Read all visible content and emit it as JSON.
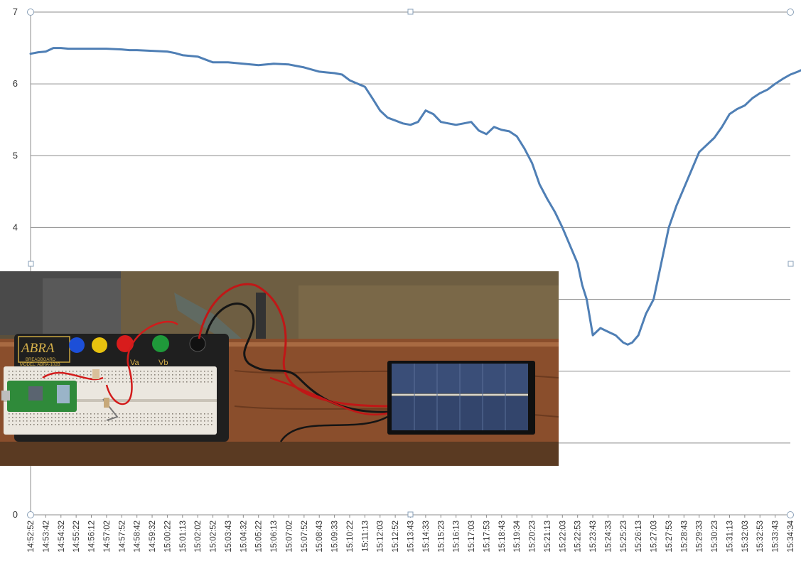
{
  "chart_data": {
    "type": "line",
    "title": "",
    "xlabel": "",
    "ylabel": "",
    "ylim": [
      0,
      7
    ],
    "yticks": [
      0,
      4,
      5,
      6,
      7
    ],
    "grid": true,
    "legend": "none",
    "line_color": "#4f7fb5",
    "grid_color": "#8c8c8c",
    "x_tick_labels": [
      "14:52:52",
      "14:53:42",
      "14:54:32",
      "14:55:22",
      "14:56:12",
      "14:57:02",
      "14:57:52",
      "14:58:42",
      "14:59:32",
      "15:00:22",
      "15:01:13",
      "15:02:02",
      "15:02:52",
      "15:03:43",
      "15:04:32",
      "15:05:22",
      "15:06:13",
      "15:07:02",
      "15:07:52",
      "15:08:43",
      "15:09:33",
      "15:10:22",
      "15:11:13",
      "15:12:03",
      "15:12:52",
      "15:13:43",
      "15:14:33",
      "15:15:23",
      "15:16:13",
      "15:17:03",
      "15:17:53",
      "15:18:43",
      "15:19:34",
      "15:20:23",
      "15:21:13",
      "15:22:03",
      "15:22:53",
      "15:23:43",
      "15:24:33",
      "15:25:23",
      "15:26:13",
      "15:27:03",
      "15:27:53",
      "15:28:43",
      "15:29:33",
      "15:30:23",
      "15:31:13",
      "15:32:03",
      "15:32:53",
      "15:33:43",
      "15:34:34"
    ],
    "series": [
      {
        "values": [
          [
            0,
            6.42
          ],
          [
            0.5,
            6.44
          ],
          [
            1,
            6.45
          ],
          [
            1.5,
            6.5
          ],
          [
            2,
            6.5
          ],
          [
            2.5,
            6.49
          ],
          [
            3,
            6.49
          ],
          [
            4,
            6.49
          ],
          [
            5,
            6.49
          ],
          [
            6,
            6.48
          ],
          [
            6.5,
            6.47
          ],
          [
            7,
            6.47
          ],
          [
            8,
            6.46
          ],
          [
            9,
            6.45
          ],
          [
            9.5,
            6.43
          ],
          [
            10,
            6.4
          ],
          [
            11,
            6.38
          ],
          [
            11.5,
            6.34
          ],
          [
            12,
            6.3
          ],
          [
            13,
            6.3
          ],
          [
            14,
            6.28
          ],
          [
            14.5,
            6.27
          ],
          [
            15,
            6.26
          ],
          [
            15.5,
            6.27
          ],
          [
            16,
            6.28
          ],
          [
            17,
            6.27
          ],
          [
            17.5,
            6.25
          ],
          [
            18,
            6.23
          ],
          [
            18.5,
            6.2
          ],
          [
            19,
            6.17
          ],
          [
            19.5,
            6.16
          ],
          [
            20,
            6.15
          ],
          [
            20.5,
            6.13
          ],
          [
            21,
            6.05
          ],
          [
            22,
            5.96
          ],
          [
            22.5,
            5.8
          ],
          [
            23,
            5.63
          ],
          [
            23.5,
            5.53
          ],
          [
            24,
            5.49
          ],
          [
            24.5,
            5.45
          ],
          [
            25,
            5.43
          ],
          [
            25.5,
            5.47
          ],
          [
            26,
            5.63
          ],
          [
            26.5,
            5.58
          ],
          [
            27,
            5.47
          ],
          [
            27.5,
            5.45
          ],
          [
            28,
            5.43
          ],
          [
            28.5,
            5.45
          ],
          [
            29,
            5.47
          ],
          [
            29.5,
            5.35
          ],
          [
            30,
            5.3
          ],
          [
            30.5,
            5.4
          ],
          [
            31,
            5.36
          ],
          [
            31.5,
            5.34
          ],
          [
            32,
            5.27
          ],
          [
            32.5,
            5.1
          ],
          [
            33,
            4.9
          ],
          [
            33.5,
            4.6
          ],
          [
            34,
            4.4
          ],
          [
            34.5,
            4.22
          ],
          [
            35,
            4.0
          ],
          [
            35.5,
            3.75
          ],
          [
            36,
            3.5
          ],
          [
            36.3,
            3.2
          ],
          [
            36.6,
            3.0
          ],
          [
            37,
            2.5
          ],
          [
            37.5,
            2.6
          ],
          [
            38,
            2.55
          ],
          [
            38.5,
            2.5
          ],
          [
            39,
            2.4
          ],
          [
            39.3,
            2.37
          ],
          [
            39.6,
            2.4
          ],
          [
            40,
            2.5
          ],
          [
            40.5,
            2.8
          ],
          [
            41,
            3.0
          ],
          [
            41.5,
            3.5
          ],
          [
            42,
            4.0
          ],
          [
            42.5,
            4.3
          ],
          [
            43,
            4.55
          ],
          [
            43.5,
            4.8
          ],
          [
            44,
            5.05
          ],
          [
            44.5,
            5.15
          ],
          [
            45,
            5.25
          ],
          [
            45.5,
            5.4
          ],
          [
            46,
            5.58
          ],
          [
            46.5,
            5.65
          ],
          [
            47,
            5.7
          ],
          [
            47.5,
            5.8
          ],
          [
            48,
            5.87
          ],
          [
            48.5,
            5.92
          ],
          [
            49,
            6.0
          ],
          [
            49.5,
            6.07
          ],
          [
            50,
            6.13
          ],
          [
            50.5,
            6.17
          ],
          [
            51,
            6.22
          ]
        ]
      }
    ]
  },
  "photo": {
    "breadboard_brand": "ABRA",
    "breadboard_sub": "BREADBOARD",
    "breadboard_model": "MODEL: ABRA-102B",
    "post_label_a": "Va",
    "post_label_b": "Vb"
  }
}
